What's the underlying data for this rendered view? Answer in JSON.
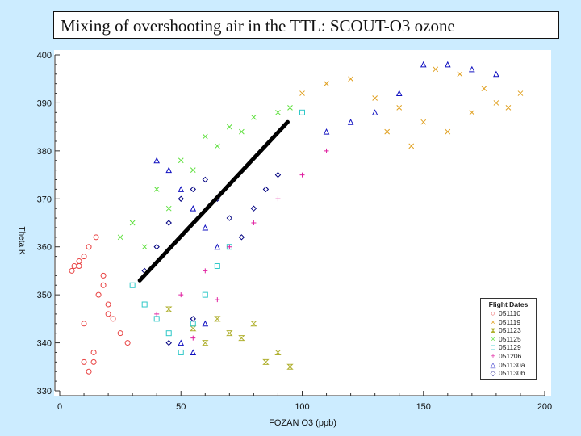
{
  "slide_title": "Mixing of overshooting air in the TTL:  SCOUT-O3 ozone",
  "chart_data": {
    "type": "scatter",
    "xlabel": "FOZAN O3 (ppb)",
    "ylabel": "Theta K",
    "xlim": [
      0,
      200
    ],
    "ylim": [
      330,
      400
    ],
    "x_ticks": [
      0,
      50,
      100,
      150,
      200
    ],
    "y_ticks": [
      330,
      340,
      350,
      360,
      370,
      380,
      390,
      400
    ],
    "grid": false,
    "legend_title": "Flight Dates",
    "legend_position": "bottom-right",
    "series": [
      {
        "name": "051110",
        "marker": "circle",
        "color": "#e84040",
        "x": [
          5,
          8,
          10,
          12,
          15,
          18,
          20,
          22,
          25,
          28,
          10,
          12,
          14,
          16,
          18,
          20,
          8,
          6,
          10,
          14
        ],
        "y": [
          355,
          356,
          358,
          360,
          362,
          352,
          348,
          345,
          342,
          340,
          336,
          334,
          338,
          350,
          354,
          346,
          357,
          356,
          344,
          336
        ]
      },
      {
        "name": "051119",
        "marker": "x",
        "color": "#e0a020",
        "x": [
          100,
          110,
          120,
          130,
          140,
          150,
          160,
          170,
          180,
          190,
          155,
          165,
          175,
          135,
          145,
          185
        ],
        "y": [
          392,
          394,
          395,
          391,
          389,
          386,
          384,
          388,
          390,
          392,
          397,
          396,
          393,
          384,
          381,
          389
        ]
      },
      {
        "name": "051123",
        "marker": "hourglass",
        "color": "#b0b030",
        "x": [
          60,
          70,
          80,
          90,
          85,
          75,
          65,
          55,
          45,
          95
        ],
        "y": [
          340,
          342,
          344,
          338,
          336,
          341,
          345,
          343,
          347,
          335
        ]
      },
      {
        "name": "051125",
        "marker": "x",
        "color": "#60e040",
        "x": [
          30,
          40,
          50,
          60,
          70,
          80,
          90,
          95,
          35,
          45,
          25,
          55,
          65,
          75
        ],
        "y": [
          365,
          372,
          378,
          383,
          385,
          387,
          388,
          389,
          360,
          368,
          362,
          376,
          381,
          384
        ]
      },
      {
        "name": "051129",
        "marker": "square",
        "color": "#30c8c8",
        "x": [
          30,
          35,
          40,
          45,
          50,
          55,
          60,
          65,
          70,
          100
        ],
        "y": [
          352,
          348,
          345,
          342,
          338,
          344,
          350,
          356,
          360,
          388
        ]
      },
      {
        "name": "051206",
        "marker": "plus",
        "color": "#e020a0",
        "x": [
          40,
          50,
          60,
          70,
          80,
          90,
          100,
          110,
          65,
          55
        ],
        "y": [
          346,
          350,
          355,
          360,
          365,
          370,
          375,
          380,
          349,
          341
        ]
      },
      {
        "name": "051130a",
        "marker": "triangle",
        "color": "#1010c0",
        "x": [
          40,
          45,
          50,
          55,
          60,
          65,
          50,
          55,
          60,
          150,
          160,
          170,
          180,
          140,
          130,
          120,
          110
        ],
        "y": [
          378,
          376,
          372,
          368,
          364,
          360,
          340,
          338,
          344,
          398,
          398,
          397,
          396,
          392,
          388,
          386,
          384
        ]
      },
      {
        "name": "051130b",
        "marker": "diamond",
        "color": "#000080",
        "x": [
          35,
          40,
          45,
          50,
          55,
          60,
          65,
          70,
          75,
          80,
          85,
          90,
          45,
          55
        ],
        "y": [
          355,
          360,
          365,
          370,
          372,
          374,
          370,
          366,
          362,
          368,
          372,
          375,
          340,
          345
        ]
      }
    ],
    "line": {
      "x": [
        33,
        94
      ],
      "y": [
        353,
        386
      ],
      "color": "#000000"
    }
  }
}
